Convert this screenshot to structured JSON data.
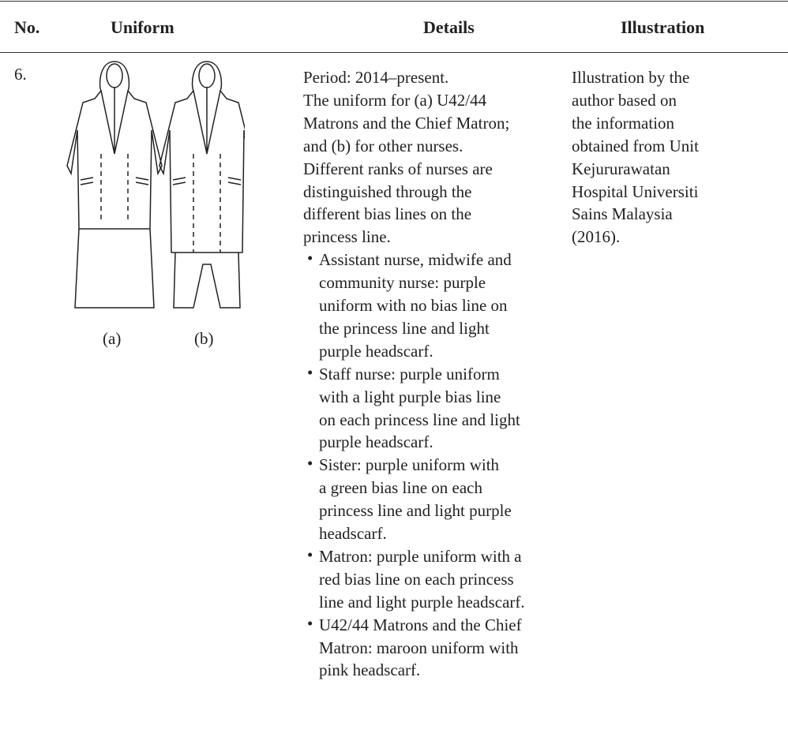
{
  "table": {
    "header": [
      "No.",
      "Uniform",
      "Details",
      "Illustration"
    ],
    "row": {
      "no": "6.",
      "figure_labels": [
        "(a)",
        "(b)"
      ],
      "details_intro": [
        "Period: 2014–present.",
        "The uniform for (a) U42/44",
        "Matrons and the Chief Matron;",
        "and (b) for other nurses.",
        "Different ranks of nurses are",
        "distinguished through the",
        "different bias lines on the",
        "princess line."
      ],
      "bullets": [
        [
          "Assistant nurse, midwife and",
          "community nurse: purple",
          "uniform with no bias line on",
          "the princess line and light",
          "purple headscarf."
        ],
        [
          "Staff nurse: purple uniform",
          "with a light purple bias line",
          "on each princess line and light",
          "purple headscarf."
        ],
        [
          "Sister: purple uniform with",
          "a green bias line on each",
          "princess line and light purple",
          "headscarf."
        ],
        [
          "Matron: purple uniform with a",
          "red bias line on each princess",
          "line and light purple headscarf."
        ],
        [
          "U42/44 Matrons and the Chief",
          "Matron: maroon uniform with",
          "pink headscarf."
        ]
      ],
      "illustration": [
        "Illustration by the",
        "author based on",
        "the information",
        "obtained from Unit",
        "Kejururawatan",
        "Hospital Universiti",
        "Sains Malaysia",
        "(2016)."
      ]
    }
  }
}
